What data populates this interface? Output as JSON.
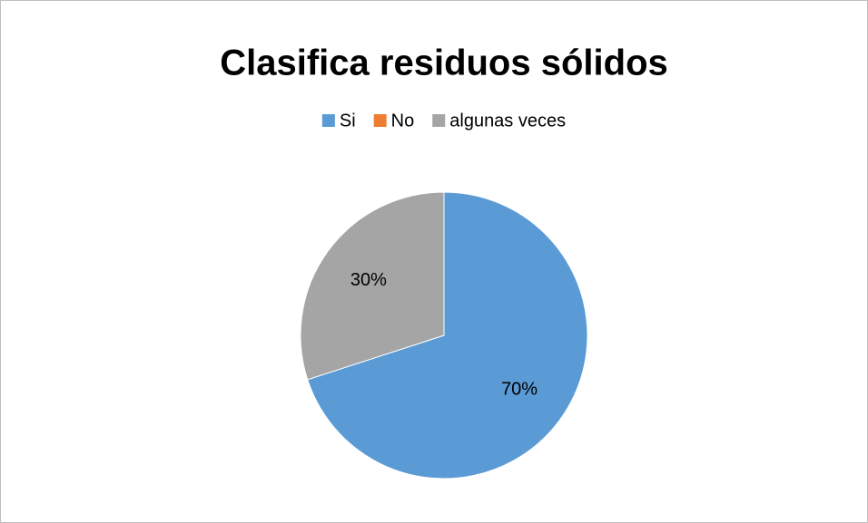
{
  "chart_data": {
    "type": "pie",
    "title": "Clasifica residuos sólidos",
    "categories": [
      "Si",
      "No",
      "algunas veces"
    ],
    "values": [
      70,
      0,
      30
    ],
    "value_labels": [
      "70%",
      null,
      "30%"
    ],
    "colors": [
      "#5b9bd5",
      "#ed7d31",
      "#a5a5a5"
    ],
    "legend": "top"
  }
}
